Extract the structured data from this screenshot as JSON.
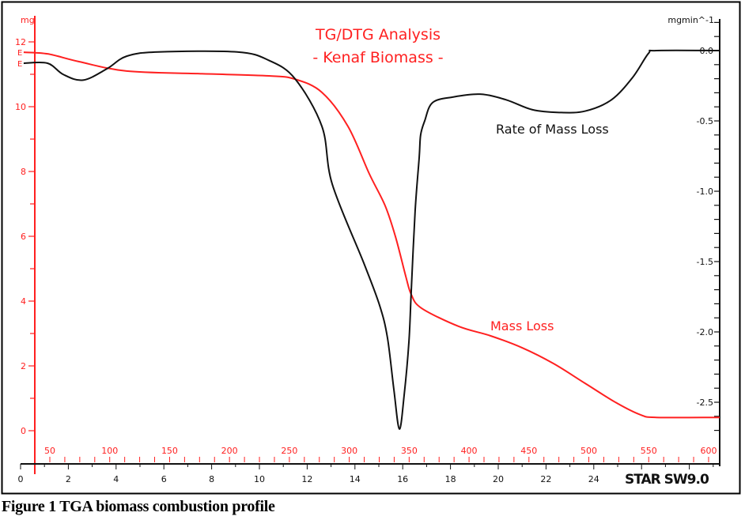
{
  "caption": "Figure 1 TGA biomass combustion profile",
  "logo_text": "STAR SW9.0",
  "chart_data": {
    "type": "line",
    "title": "TG/DTG Analysis",
    "subtitle": "- Kenaf Biomass -",
    "xlabel": "",
    "xlim": [
      0,
      29.3
    ],
    "x_ticks": [
      0,
      2,
      4,
      6,
      8,
      10,
      12,
      14,
      16,
      18,
      20,
      22,
      24
    ],
    "x2_ticks": [
      50,
      100,
      150,
      200,
      250,
      300,
      350,
      400,
      450,
      500,
      550,
      600
    ],
    "y_left": {
      "label": "mg",
      "lim": [
        0,
        12.8
      ],
      "ticks": [
        0,
        2,
        4,
        6,
        8,
        10,
        12
      ]
    },
    "y_right": {
      "label": "mgmin^-1",
      "lim": [
        -2.7,
        0.2
      ],
      "ticks": [
        "0.0",
        "-0.5",
        "-1.0",
        "-1.5",
        "-2.0",
        "-2.5"
      ]
    },
    "grid": false,
    "colors": {
      "mass": "#ff2020",
      "rate": "#111111",
      "axis_left": "#ff2020",
      "axis_right": "#111111"
    },
    "series": [
      {
        "name": "Mass Loss",
        "axis": "left",
        "x": [
          0.13,
          1.13,
          2.45,
          4.44,
          7.42,
          10.4,
          11.49,
          12.62,
          13.71,
          14.6,
          15.26,
          15.7,
          16.13,
          16.36,
          16.79,
          18.34,
          19.67,
          21.0,
          22.32,
          23.64,
          24.97,
          25.96,
          26.62,
          29.27
        ],
        "y": [
          11.68,
          11.63,
          11.39,
          11.1,
          11.02,
          10.95,
          10.85,
          10.44,
          9.39,
          7.93,
          6.95,
          5.98,
          4.76,
          4.2,
          3.78,
          3.22,
          2.93,
          2.56,
          2.07,
          1.46,
          0.85,
          0.49,
          0.41,
          0.41
        ]
      },
      {
        "name": "Rate of Mass Loss",
        "axis": "right",
        "x": [
          0.13,
          1.13,
          1.79,
          2.62,
          3.61,
          4.44,
          5.76,
          9.07,
          10.4,
          11.49,
          12.62,
          13.05,
          14.37,
          15.03,
          15.36,
          15.63,
          15.86,
          16.06,
          16.26,
          16.36,
          16.52,
          16.69,
          16.75,
          16.92,
          17.25,
          18.11,
          19.24,
          20.33,
          21.42,
          22.55,
          23.64,
          24.74,
          25.63,
          26.29,
          26.62,
          29.27
        ],
        "y": [
          -0.09,
          -0.09,
          -0.17,
          -0.21,
          -0.13,
          -0.04,
          -0.01,
          -0.01,
          -0.07,
          -0.2,
          -0.54,
          -0.95,
          -1.51,
          -1.81,
          -2.04,
          -2.41,
          -2.69,
          -2.45,
          -2.07,
          -1.7,
          -1.14,
          -0.76,
          -0.6,
          -0.5,
          -0.37,
          -0.33,
          -0.31,
          -0.35,
          -0.42,
          -0.44,
          -0.43,
          -0.35,
          -0.19,
          -0.02,
          0,
          0
        ]
      }
    ]
  }
}
